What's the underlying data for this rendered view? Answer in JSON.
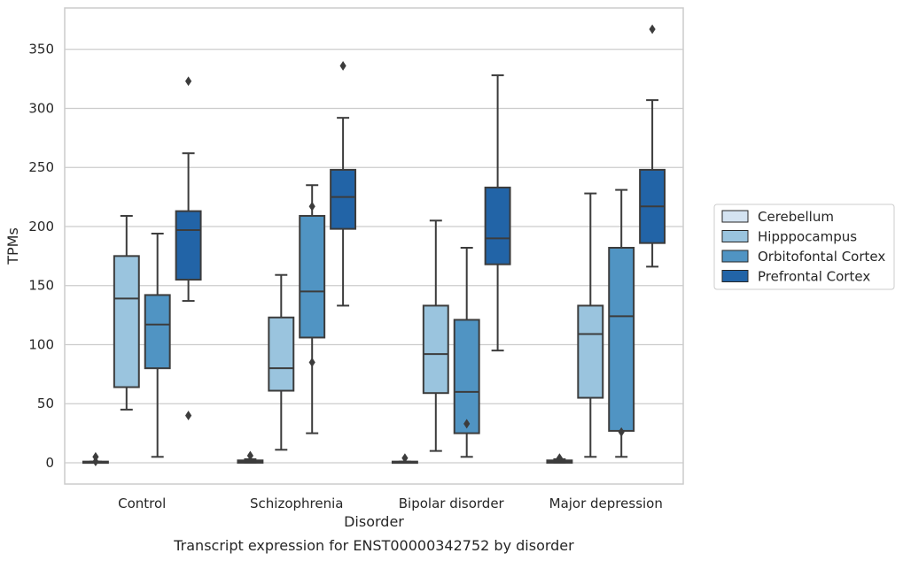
{
  "chart_data": {
    "type": "box",
    "title": "",
    "caption": "Transcript expression for ENST00000342752 by disorder",
    "xlabel": "Disorder",
    "ylabel": "TPMs",
    "ylim": [
      -18,
      385
    ],
    "yticks": [
      0,
      50,
      100,
      150,
      200,
      250,
      300,
      350
    ],
    "grid": "horizontal",
    "legend_position": "right",
    "categories": [
      "Control",
      "Schizophrenia",
      "Bipolar disorder",
      "Major depression"
    ],
    "series": [
      {
        "name": "Cerebellum",
        "color": "#d4e3f1",
        "boxes": [
          {
            "whislo": 0,
            "q1": 0,
            "med": 0.5,
            "q3": 1,
            "whishi": 1,
            "fliers": [
              5,
              1
            ]
          },
          {
            "whislo": 0,
            "q1": 0,
            "med": 1,
            "q3": 2,
            "whishi": 3,
            "fliers": [
              6
            ]
          },
          {
            "whislo": 0,
            "q1": 0,
            "med": 0.5,
            "q3": 1,
            "whishi": 1,
            "fliers": [
              4
            ]
          },
          {
            "whislo": 0,
            "q1": 0,
            "med": 1,
            "q3": 2,
            "whishi": 3,
            "fliers": [
              4
            ]
          }
        ]
      },
      {
        "name": "Hipppocampus",
        "color": "#9ac4de",
        "boxes": [
          {
            "whislo": 45,
            "q1": 64,
            "med": 139,
            "q3": 175,
            "whishi": 209,
            "fliers": []
          },
          {
            "whislo": 11,
            "q1": 61,
            "med": 80,
            "q3": 123,
            "whishi": 159,
            "fliers": []
          },
          {
            "whislo": 10,
            "q1": 59,
            "med": 92,
            "q3": 133,
            "whishi": 205,
            "fliers": []
          },
          {
            "whislo": 5,
            "q1": 55,
            "med": 109,
            "q3": 133,
            "whishi": 228,
            "fliers": []
          }
        ]
      },
      {
        "name": "Orbitofontal Cortex",
        "color": "#5094c3",
        "boxes": [
          {
            "whislo": 5,
            "q1": 80,
            "med": 117,
            "q3": 142,
            "whishi": 194,
            "fliers": []
          },
          {
            "whislo": 25,
            "q1": 106,
            "med": 145,
            "q3": 209,
            "whishi": 235,
            "fliers": [
              217,
              85
            ]
          },
          {
            "whislo": 5,
            "q1": 25,
            "med": 60,
            "q3": 121,
            "whishi": 182,
            "fliers": [
              33
            ]
          },
          {
            "whislo": 5,
            "q1": 27,
            "med": 124,
            "q3": 182,
            "whishi": 231,
            "fliers": [
              26
            ]
          }
        ]
      },
      {
        "name": "Prefrontal Cortex",
        "color": "#2264a7",
        "boxes": [
          {
            "whislo": 137,
            "q1": 155,
            "med": 197,
            "q3": 213,
            "whishi": 262,
            "fliers": [
              323,
              40
            ]
          },
          {
            "whislo": 133,
            "q1": 198,
            "med": 225,
            "q3": 248,
            "whishi": 292,
            "fliers": [
              336
            ]
          },
          {
            "whislo": 95,
            "q1": 168,
            "med": 190,
            "q3": 233,
            "whishi": 328,
            "fliers": []
          },
          {
            "whislo": 166,
            "q1": 186,
            "med": 217,
            "q3": 248,
            "whishi": 307,
            "fliers": [
              367
            ]
          }
        ]
      }
    ]
  }
}
